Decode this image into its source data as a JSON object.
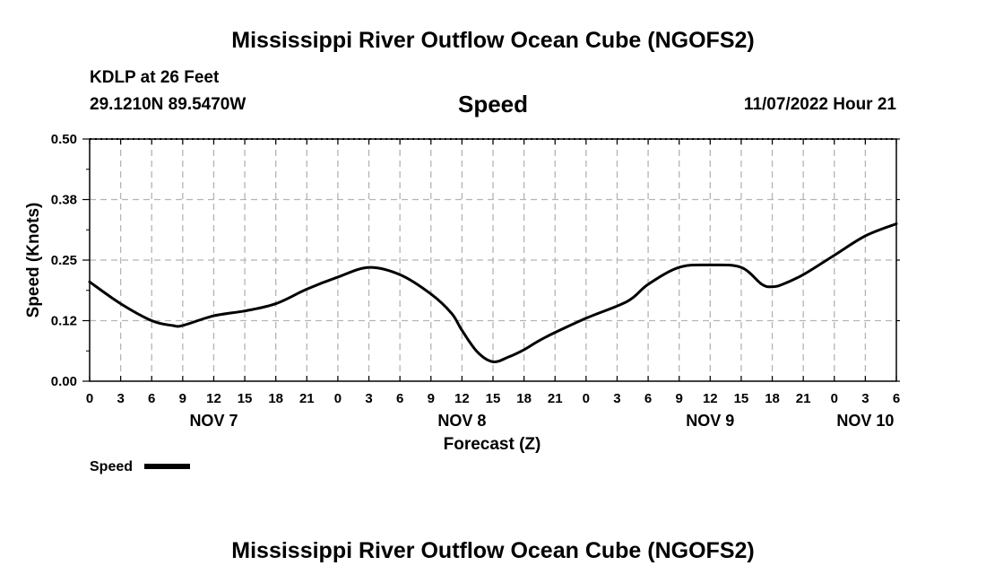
{
  "header": {
    "title": "Mississippi River Outflow Ocean Cube (NGOFS2)",
    "station": "KDLP at 26 Feet",
    "coordinates": "29.1210N  89.5470W",
    "parameter": "Speed",
    "datetime": "11/07/2022 Hour 21"
  },
  "footer": {
    "title": "Mississippi River Outflow Ocean Cube (NGOFS2)"
  },
  "chart_data": {
    "type": "line",
    "title": "Speed",
    "xlabel": "Forecast (Z)",
    "ylabel": "Speed (Knots)",
    "x_unit": "hours since Nov 7 00Z",
    "xlim": [
      0,
      78
    ],
    "ylim": [
      0,
      0.5
    ],
    "grid": true,
    "yticks": [
      0.0,
      0.125,
      0.25,
      0.375,
      0.5
    ],
    "ytick_labels": [
      "0.00",
      "0.12",
      "0.25",
      "0.38",
      "0.50"
    ],
    "xticks": [
      0,
      3,
      6,
      9,
      12,
      15,
      18,
      21,
      24,
      27,
      30,
      33,
      36,
      39,
      42,
      45,
      48,
      51,
      54,
      57,
      60,
      63,
      66,
      69,
      72,
      75,
      78
    ],
    "xtick_labels": [
      "0",
      "3",
      "6",
      "9",
      "12",
      "15",
      "18",
      "21",
      "0",
      "3",
      "6",
      "9",
      "12",
      "15",
      "18",
      "21",
      "0",
      "3",
      "6",
      "9",
      "12",
      "15",
      "18",
      "21",
      "0",
      "3",
      "6"
    ],
    "date_labels": [
      {
        "x": 12,
        "label": "NOV 7"
      },
      {
        "x": 36,
        "label": "NOV 8"
      },
      {
        "x": 60,
        "label": "NOV 9"
      },
      {
        "x": 75,
        "label": "NOV 10"
      }
    ],
    "legend": {
      "label": "Speed",
      "position": "bottom-left"
    },
    "series": [
      {
        "name": "Speed",
        "color": "#000000",
        "x": [
          0,
          3,
          6,
          8,
          9,
          12,
          15,
          18,
          21,
          24,
          27,
          30,
          33,
          35,
          36,
          37.5,
          39,
          40.5,
          42,
          44,
          48,
          52,
          54,
          57,
          60,
          63,
          65,
          66,
          67,
          69,
          72,
          75,
          78
        ],
        "y": [
          0.205,
          0.16,
          0.125,
          0.115,
          0.115,
          0.135,
          0.145,
          0.16,
          0.19,
          0.215,
          0.235,
          0.22,
          0.18,
          0.14,
          0.105,
          0.06,
          0.04,
          0.05,
          0.065,
          0.09,
          0.13,
          0.165,
          0.2,
          0.235,
          0.24,
          0.235,
          0.2,
          0.195,
          0.2,
          0.22,
          0.26,
          0.3,
          0.325
        ]
      }
    ]
  }
}
